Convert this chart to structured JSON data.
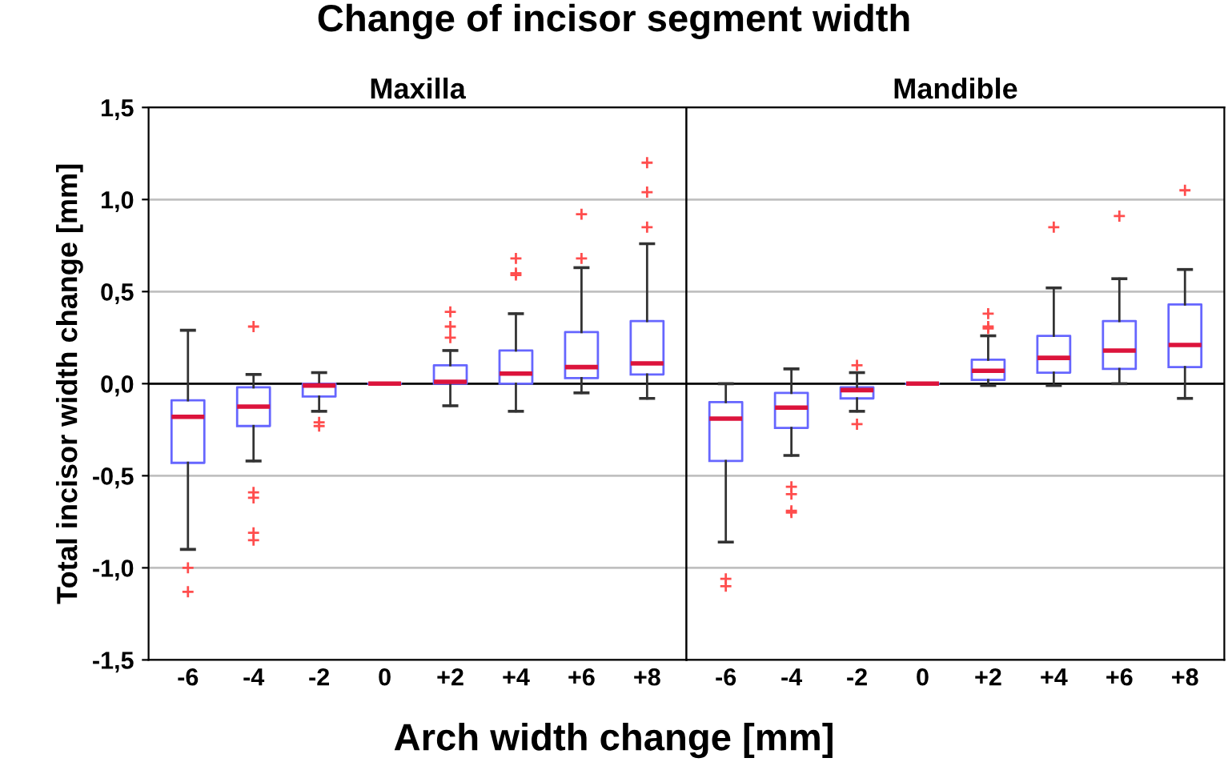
{
  "chart_data": [
    {
      "type": "box",
      "title": "Change of incisor segment width",
      "subtitle": "Maxilla",
      "xlabel": "Arch width change [mm]",
      "ylabel": "Total incisor width change [mm]",
      "categories": [
        "-6",
        "-4",
        "-2",
        "0",
        "+2",
        "+4",
        "+6",
        "+8"
      ],
      "ylim": [
        -1.5,
        1.5
      ],
      "yticks": [
        {
          "value": -1.5,
          "label": "-1,5"
        },
        {
          "value": -1.0,
          "label": "-1,0"
        },
        {
          "value": -0.5,
          "label": "-0,5"
        },
        {
          "value": 0.0,
          "label": "0,0"
        },
        {
          "value": 0.5,
          "label": "0,5"
        },
        {
          "value": 1.0,
          "label": "1,0"
        },
        {
          "value": 1.5,
          "label": "1,5"
        }
      ],
      "grid": "y",
      "ref_lines": [
        {
          "axis": "y",
          "value": 0,
          "color": "#000000"
        }
      ],
      "series": [
        {
          "color": "#6666ff",
          "boxes": [
            {
              "low": -0.9,
              "q1": -0.43,
              "median": -0.18,
              "q3": -0.09,
              "high": 0.29,
              "outliers": [
                -1.0,
                -1.13
              ]
            },
            {
              "low": -0.42,
              "q1": -0.23,
              "median": -0.125,
              "q3": -0.02,
              "high": 0.05,
              "outliers": [
                0.31,
                -0.59,
                -0.62,
                -0.81,
                -0.85
              ]
            },
            {
              "low": -0.15,
              "q1": -0.07,
              "median": -0.01,
              "q3": 0.0,
              "high": 0.06,
              "outliers": [
                -0.21,
                -0.23
              ]
            },
            {
              "low": 0,
              "q1": 0,
              "median": 0,
              "q3": 0,
              "high": 0
            },
            {
              "low": -0.12,
              "q1": 0.0,
              "median": 0.01,
              "q3": 0.1,
              "high": 0.18,
              "outliers": [
                0.39,
                0.31,
                0.25
              ]
            },
            {
              "low": -0.15,
              "q1": 0.0,
              "median": 0.055,
              "q3": 0.18,
              "high": 0.38,
              "outliers": [
                0.68,
                0.6,
                0.59
              ]
            },
            {
              "low": -0.05,
              "q1": 0.03,
              "median": 0.09,
              "q3": 0.28,
              "high": 0.63,
              "outliers": [
                0.92,
                0.68
              ]
            },
            {
              "low": -0.08,
              "q1": 0.05,
              "median": 0.11,
              "q3": 0.34,
              "high": 0.76,
              "outliers": [
                1.2,
                1.04,
                0.85
              ]
            }
          ]
        }
      ]
    },
    {
      "type": "box",
      "subtitle": "Mandible",
      "tick_labels": "x",
      "categories": [
        "-6",
        "-4",
        "-2",
        "0",
        "+2",
        "+4",
        "+6",
        "+8"
      ],
      "ylim": [
        -1.5,
        1.5
      ],
      "yticks": [
        -1.5,
        -1.0,
        -0.5,
        0.0,
        0.5,
        1.0,
        1.5
      ],
      "grid": "y",
      "ref_lines": [
        {
          "axis": "y",
          "value": 0,
          "color": "#000000"
        }
      ],
      "series": [
        {
          "color": "#6666ff",
          "boxes": [
            {
              "low": -0.86,
              "q1": -0.42,
              "median": -0.19,
              "q3": -0.1,
              "high": 0.0,
              "outliers": [
                -1.06,
                -1.1
              ]
            },
            {
              "low": -0.39,
              "q1": -0.24,
              "median": -0.13,
              "q3": -0.05,
              "high": 0.08,
              "outliers": [
                -0.56,
                -0.6,
                -0.69,
                -0.7
              ]
            },
            {
              "low": -0.15,
              "q1": -0.08,
              "median": -0.035,
              "q3": -0.02,
              "high": 0.06,
              "outliers": [
                0.1,
                -0.22
              ]
            },
            {
              "low": 0,
              "q1": 0,
              "median": 0,
              "q3": 0,
              "high": 0
            },
            {
              "low": -0.01,
              "q1": 0.02,
              "median": 0.07,
              "q3": 0.13,
              "high": 0.26,
              "outliers": [
                0.38,
                0.31,
                0.3
              ]
            },
            {
              "low": -0.01,
              "q1": 0.06,
              "median": 0.14,
              "q3": 0.26,
              "high": 0.52,
              "outliers": [
                0.85
              ]
            },
            {
              "low": 0.0,
              "q1": 0.08,
              "median": 0.18,
              "q3": 0.34,
              "high": 0.57,
              "outliers": [
                0.91
              ]
            },
            {
              "low": -0.08,
              "q1": 0.09,
              "median": 0.21,
              "q3": 0.43,
              "high": 0.62,
              "outliers": [
                1.05
              ]
            }
          ]
        }
      ]
    }
  ]
}
